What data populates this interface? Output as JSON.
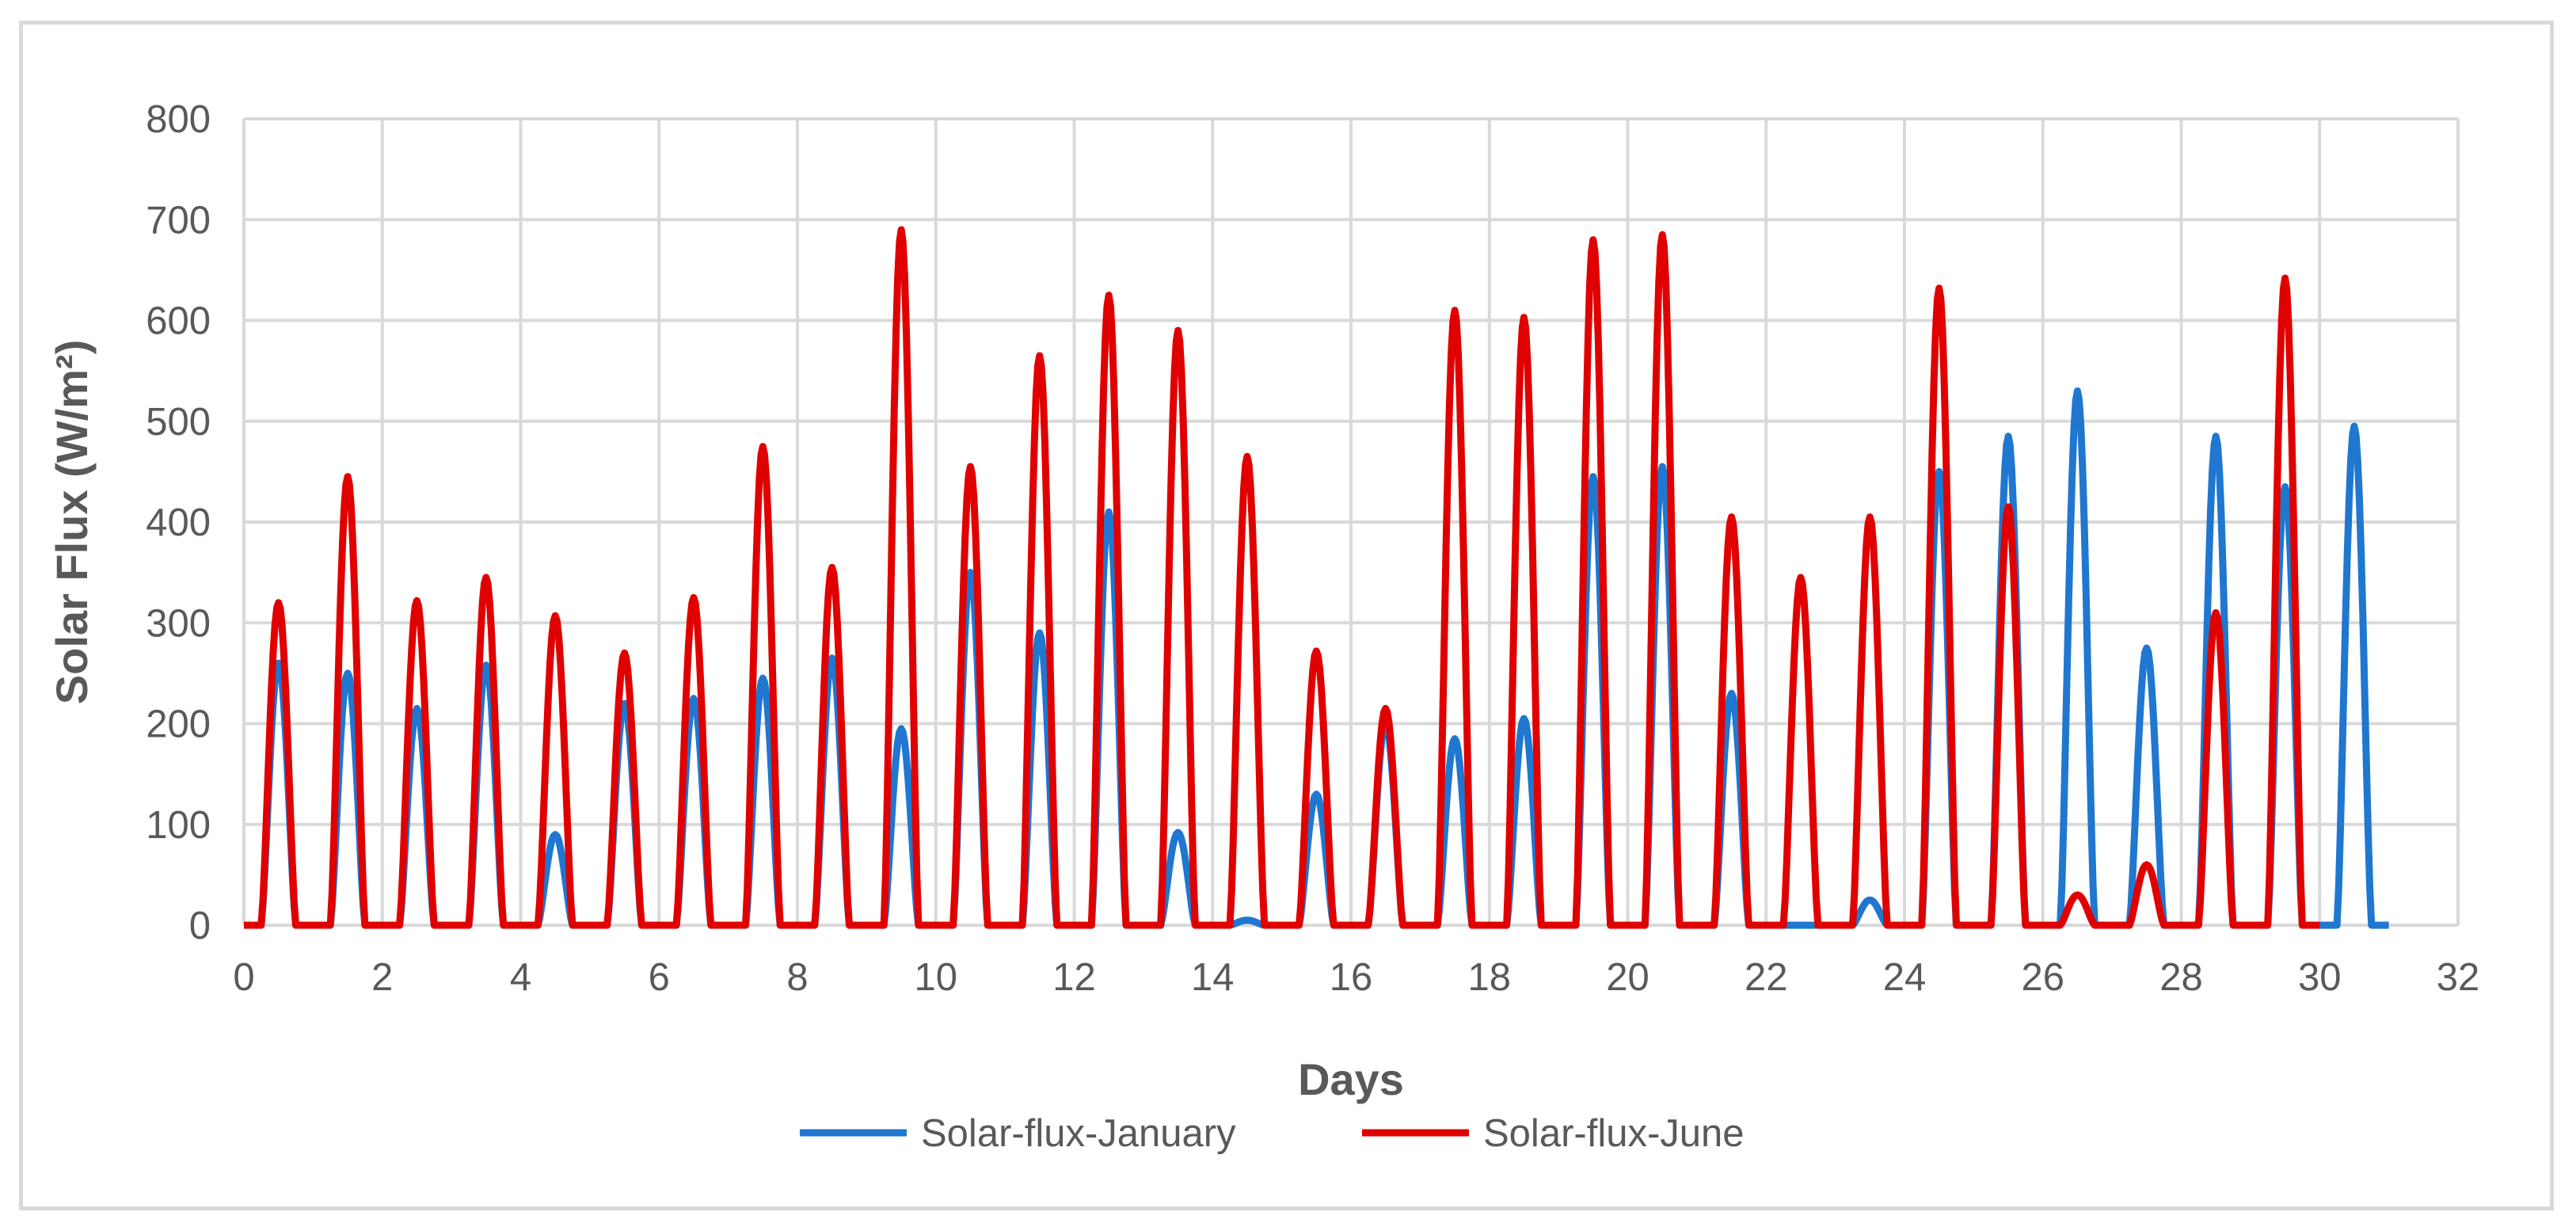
{
  "chart_data": {
    "type": "line",
    "title": "",
    "xlabel": "Days",
    "ylabel": "Solar Flux (W/m²)",
    "xlim": [
      0,
      32
    ],
    "ylim": [
      0,
      800
    ],
    "x_ticks": [
      0,
      2,
      4,
      6,
      8,
      10,
      12,
      14,
      16,
      18,
      20,
      22,
      24,
      26,
      28,
      30,
      32
    ],
    "y_ticks": [
      0,
      100,
      200,
      300,
      400,
      500,
      600,
      700,
      800
    ],
    "grid": true,
    "legend_position": "bottom",
    "series": [
      {
        "name": "Solar-flux-January",
        "color": "#1f77d0",
        "daily_peaks": [
          260,
          250,
          215,
          258,
          90,
          220,
          225,
          245,
          265,
          195,
          350,
          290,
          410,
          92,
          5,
          130,
          200,
          185,
          205,
          445,
          455,
          230,
          0,
          25,
          450,
          485,
          530,
          275,
          485,
          435,
          495
        ]
      },
      {
        "name": "Solar-flux-June",
        "color": "#e00000",
        "daily_peaks": [
          320,
          445,
          322,
          345,
          307,
          270,
          325,
          475,
          355,
          690,
          455,
          565,
          625,
          590,
          465,
          272,
          215,
          610,
          603,
          680,
          685,
          405,
          345,
          405,
          632,
          415,
          30,
          60,
          310,
          642
        ]
      }
    ]
  }
}
